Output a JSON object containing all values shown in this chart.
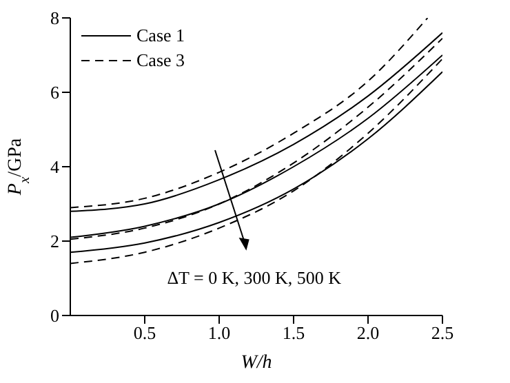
{
  "chart_data": {
    "type": "line",
    "xlabel": "W/h",
    "ylabel": "P$_{x}$/GPa",
    "annotations": [
      "ΔT = 0 K, 300 K, 500 K"
    ],
    "x": [
      0,
      0.5,
      1.0,
      1.5,
      2.0,
      2.5
    ],
    "xlim": [
      0,
      2.5
    ],
    "xticks": [
      0.5,
      {
        "value": 1,
        "label": "1.0"
      },
      1.5,
      {
        "value": 2,
        "label": "2.0"
      },
      2.5
    ],
    "ylim": [
      0,
      8
    ],
    "yticks": [
      0,
      2,
      4,
      6,
      8
    ],
    "legend": "top left",
    "series": [
      {
        "name": "Case 1",
        "color": "#000000",
        "line_style": "solid",
        "values": [
          2.8,
          3.0,
          3.65,
          4.6,
          5.9,
          7.6
        ]
      },
      {
        "color": "#000000",
        "line_style": "solid",
        "values": [
          2.1,
          2.4,
          3.0,
          4.0,
          5.3,
          7.0
        ]
      },
      {
        "color": "#000000",
        "line_style": "solid",
        "values": [
          1.7,
          1.95,
          2.5,
          3.4,
          4.75,
          6.55
        ]
      },
      {
        "name": "Case 3",
        "color": "#000000",
        "line_style": "dashed",
        "x": [
          0,
          0.5,
          1.0,
          1.5,
          2.0,
          2.4
        ],
        "values": [
          2.9,
          3.15,
          3.85,
          4.9,
          6.3,
          8.0
        ]
      },
      {
        "color": "#000000",
        "line_style": "dashed",
        "values": [
          2.05,
          2.35,
          3.0,
          4.1,
          5.6,
          7.45
        ]
      },
      {
        "color": "#000000",
        "line_style": "dashed",
        "values": [
          1.4,
          1.7,
          2.35,
          3.35,
          4.9,
          6.9
        ]
      }
    ]
  }
}
